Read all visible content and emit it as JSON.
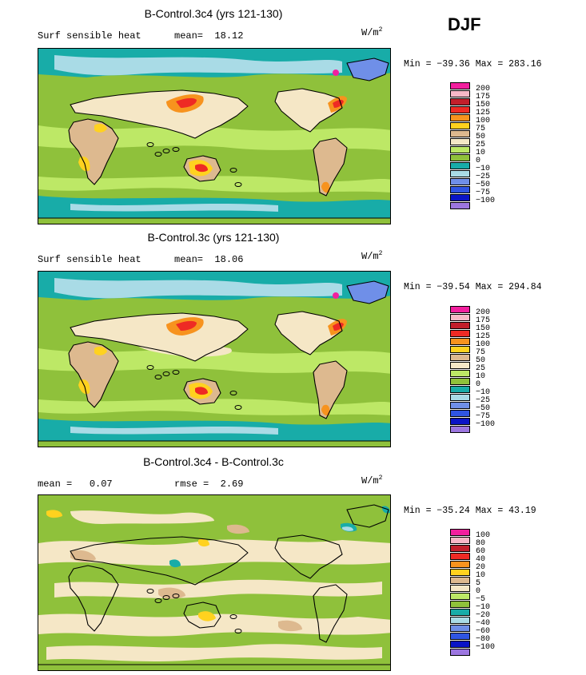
{
  "season": "DJF",
  "units": {
    "base": "W/m",
    "exp": "2"
  },
  "colors": {
    "pink": "#f21f9e",
    "lightpink": "#f7b8c7",
    "darkred": "#c21f2b",
    "red": "#ee2a24",
    "orange": "#f7931e",
    "gold": "#ffd21f",
    "tan": "#ddb98f",
    "cream": "#f5e7c6",
    "lightgreen": "#bde866",
    "green": "#8fc13b",
    "teal": "#18aca8",
    "lightblue": "#a9dbe6",
    "skyblue": "#6f8fe8",
    "blue": "#2f55e3",
    "navy": "#0a14c6",
    "purple": "#9c76e0",
    "ocean": "#8fc13b"
  },
  "panels": [
    {
      "title": "B-Control.3c4 (yrs 121-130)",
      "left_label": "Surf sensible heat",
      "mid_label": "mean=",
      "mid_value": "18.12",
      "minmax": "Min = −39.36 Max = 283.16",
      "legend": [
        "200",
        "175",
        "150",
        "125",
        "100",
        "75",
        "50",
        "25",
        "10",
        "0",
        "−10",
        "−25",
        "−50",
        "−75",
        "−100"
      ]
    },
    {
      "title": "B-Control.3c (yrs 121-130)",
      "left_label": "Surf sensible heat",
      "mid_label": "mean=",
      "mid_value": "18.06",
      "minmax": "Min = −39.54 Max = 294.84",
      "legend": [
        "200",
        "175",
        "150",
        "125",
        "100",
        "75",
        "50",
        "25",
        "10",
        "0",
        "−10",
        "−25",
        "−50",
        "−75",
        "−100"
      ]
    },
    {
      "title": "B-Control.3c4 - B-Control.3c",
      "left_label": "mean =",
      "left_value": "0.07",
      "mid_label": "rmse =",
      "mid_value": "2.69",
      "minmax": "Min = −35.24 Max =  43.19",
      "legend": [
        "100",
        "80",
        "60",
        "40",
        "20",
        "10",
        "5",
        "0",
        "−5",
        "−10",
        "−20",
        "−40",
        "−60",
        "−80",
        "−100"
      ]
    }
  ],
  "swatch_colors": [
    "pink",
    "lightpink",
    "darkred",
    "red",
    "orange",
    "gold",
    "tan",
    "cream",
    "lightgreen",
    "green",
    "teal",
    "lightblue",
    "skyblue",
    "blue",
    "navy",
    "purple"
  ]
}
